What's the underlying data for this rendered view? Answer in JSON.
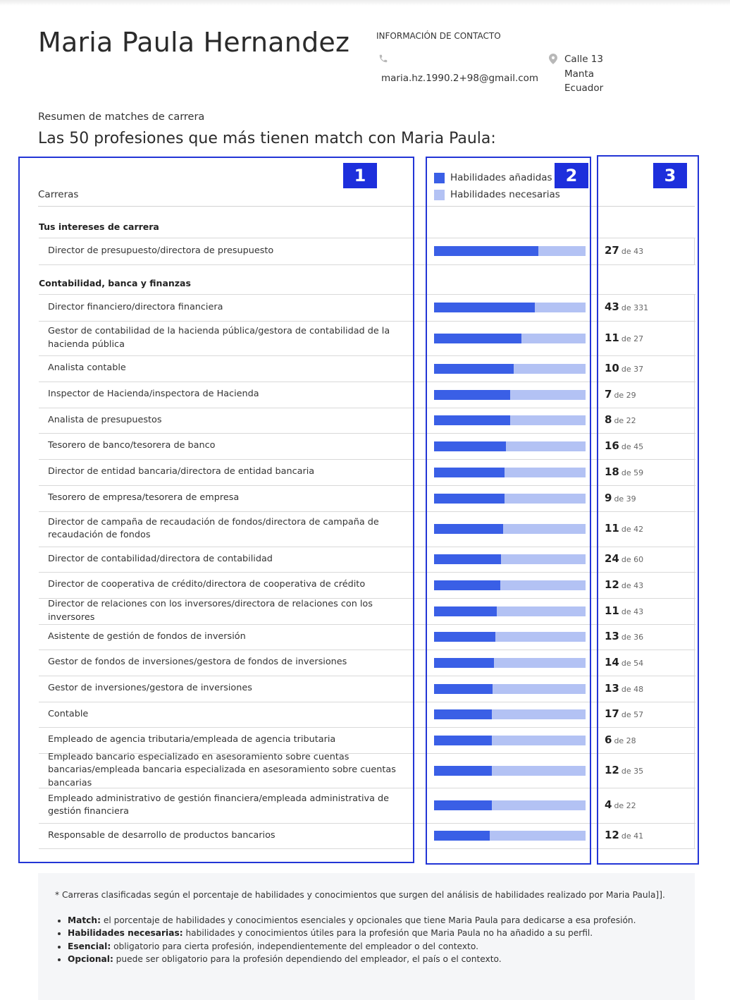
{
  "header": {
    "name": "Maria Paula Hernandez",
    "contact_title": "INFORMACIÓN DE CONTACTO",
    "email": "maria.hz.1990.2+98@gmail.com",
    "address": [
      "Calle 13",
      "Manta",
      "Ecuador"
    ],
    "phone_icon": "phone-icon",
    "location_icon": "location-pin-icon"
  },
  "summary": {
    "subtitle": "Resumen de matches de carrera",
    "title": "Las 50 profesiones que más tienen match con Maria Paula:"
  },
  "annotations": [
    "1",
    "2",
    "3"
  ],
  "table": {
    "column_careers": "Carreras",
    "legend": [
      {
        "label": "Habilidades añadidas",
        "color": "#3a5fe6"
      },
      {
        "label": "Habilidades necesarias",
        "color": "#b3c2f4"
      }
    ],
    "of_word": "de",
    "sections": [
      {
        "title": "Tus intereses de carrera",
        "rows": [
          {
            "career": "Director de presupuesto/directora de presupuesto",
            "added": 27,
            "total": 43
          }
        ]
      },
      {
        "title": "Contabilidad, banca y finanzas",
        "rows": [
          {
            "career": "Director financiero/directora financiera",
            "added": 43,
            "total": 331
          },
          {
            "career": "Gestor de contabilidad de la hacienda pública/gestora de contabilidad de la hacienda pública",
            "added": 11,
            "total": 27
          },
          {
            "career": "Analista contable",
            "added": 10,
            "total": 37
          },
          {
            "career": "Inspector de Hacienda/inspectora de Hacienda",
            "added": 7,
            "total": 29
          },
          {
            "career": "Analista de presupuestos",
            "added": 8,
            "total": 22
          },
          {
            "career": "Tesorero de banco/tesorera de banco",
            "added": 16,
            "total": 45
          },
          {
            "career": "Director de entidad bancaria/directora de entidad bancaria",
            "added": 18,
            "total": 59
          },
          {
            "career": "Tesorero de empresa/tesorera de empresa",
            "added": 9,
            "total": 39
          },
          {
            "career": "Director de campaña de recaudación de fondos/directora de campaña de recaudación de fondos",
            "added": 11,
            "total": 42
          },
          {
            "career": "Director de contabilidad/directora de contabilidad",
            "added": 24,
            "total": 60
          },
          {
            "career": "Director de cooperativa de crédito/directora de cooperativa de crédito",
            "added": 12,
            "total": 43
          },
          {
            "career": "Director de relaciones con los inversores/directora de relaciones con los inversores",
            "added": 11,
            "total": 43
          },
          {
            "career": "Asistente de gestión de fondos de inversión",
            "added": 13,
            "total": 36
          },
          {
            "career": "Gestor de fondos de inversiones/gestora de fondos de inversiones",
            "added": 14,
            "total": 54
          },
          {
            "career": "Gestor de inversiones/gestora de inversiones",
            "added": 13,
            "total": 48
          },
          {
            "career": "Contable",
            "added": 17,
            "total": 57
          },
          {
            "career": "Empleado de agencia tributaria/empleada de agencia tributaria",
            "added": 6,
            "total": 28
          },
          {
            "career": "Empleado bancario especializado en asesoramiento sobre cuentas bancarias/empleada bancaria especializada en asesoramiento sobre cuentas bancarias",
            "added": 12,
            "total": 35
          },
          {
            "career": "Empleado administrativo de gestión financiera/empleada administrativa de gestión financiera",
            "added": 4,
            "total": 22
          },
          {
            "career": "Responsable de desarrollo de productos bancarios",
            "added": 12,
            "total": 41
          }
        ]
      }
    ],
    "bar_fill_fractions": [
      0.69,
      0.665,
      0.575,
      0.525,
      0.5,
      0.5,
      0.475,
      0.465,
      0.465,
      0.455,
      0.44,
      0.435,
      0.415,
      0.405,
      0.395,
      0.385,
      0.38,
      0.38,
      0.38,
      0.38,
      0.365
    ]
  },
  "footer": {
    "note": "* Carreras clasificadas según el porcentaje de habilidades y conocimientos que surgen del análisis de habilidades realizado por Maria Paula]].",
    "items": [
      {
        "term": "Match:",
        "text": " el porcentaje de habilidades y conocimientos esenciales y opcionales que tiene Maria Paula para dedicarse a esa profesión."
      },
      {
        "term": "Habilidades necesarias:",
        "text": " habilidades y conocimientos útiles para la profesión que Maria Paula no ha añadido a su perfil."
      },
      {
        "term": "Esencial:",
        "text": " obligatorio para cierta profesión, independientemente del empleador o del contexto."
      },
      {
        "term": "Opcional:",
        "text": " puede ser obligatorio para la profesión dependiendo del empleador, el país o el contexto."
      }
    ]
  }
}
